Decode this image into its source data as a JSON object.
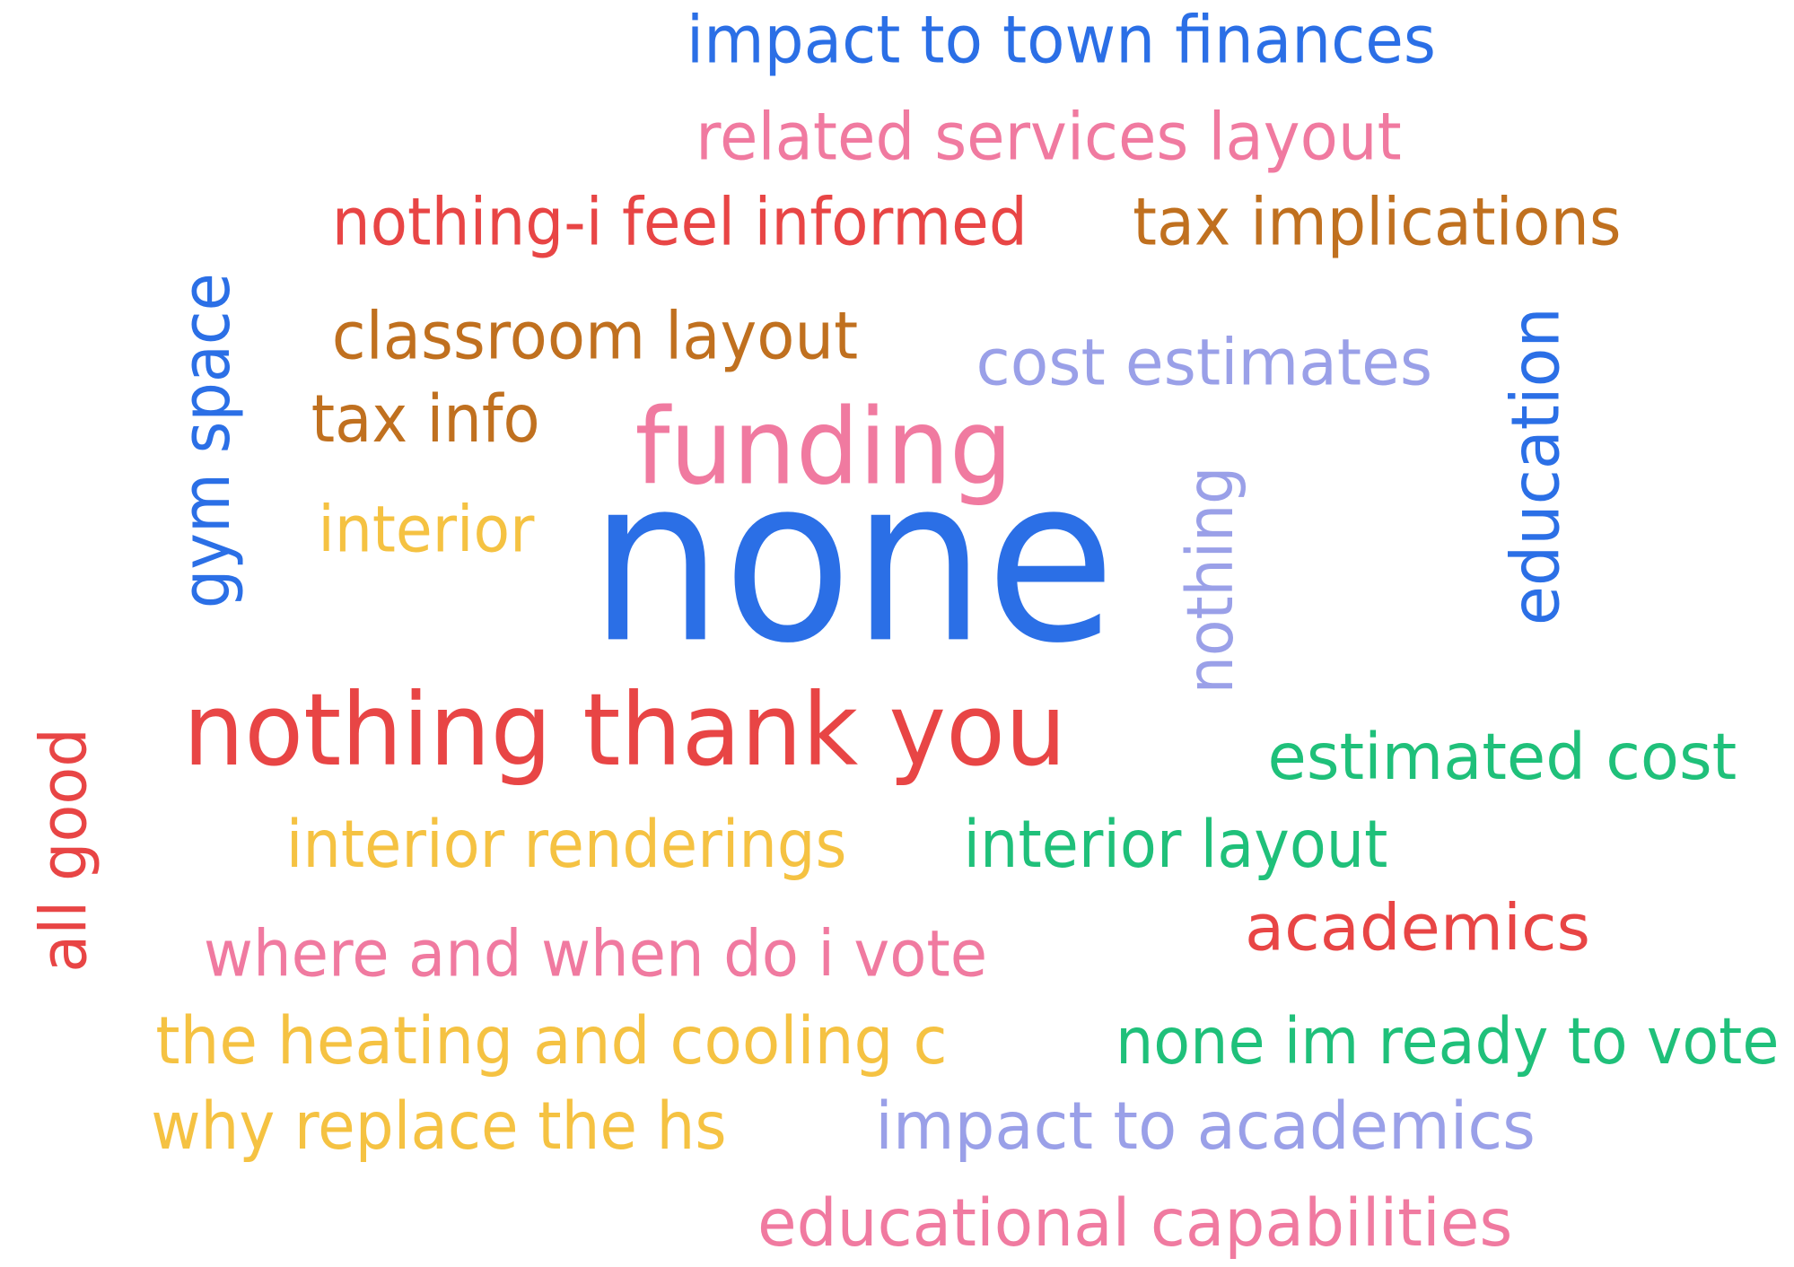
{
  "words": [
    {
      "text": "impact to town finances",
      "color": "#2b6fe6"
    },
    {
      "text": "related services layout",
      "color": "#f07aa0"
    },
    {
      "text": "nothing-i feel informed",
      "color": "#e84545"
    },
    {
      "text": "tax implications",
      "color": "#c0701f"
    },
    {
      "text": "gym space",
      "color": "#2b6fe6"
    },
    {
      "text": "classroom layout",
      "color": "#c0701f"
    },
    {
      "text": "cost estimates",
      "color": "#9aa0e8"
    },
    {
      "text": "education",
      "color": "#2b6fe6"
    },
    {
      "text": "tax info",
      "color": "#c0701f"
    },
    {
      "text": "funding",
      "color": "#f07aa0"
    },
    {
      "text": "nothing",
      "color": "#9aa0e8"
    },
    {
      "text": "interior",
      "color": "#f5c242"
    },
    {
      "text": "none",
      "color": "#2b6fe6"
    },
    {
      "text": "nothing thank you",
      "color": "#e84545"
    },
    {
      "text": "all good",
      "color": "#e84545"
    },
    {
      "text": "estimated cost",
      "color": "#1fc07a"
    },
    {
      "text": "interior renderings",
      "color": "#f5c242"
    },
    {
      "text": "interior layout",
      "color": "#1fc07a"
    },
    {
      "text": "academics",
      "color": "#e84545"
    },
    {
      "text": "where and when do i vote",
      "color": "#f07aa0"
    },
    {
      "text": "the heating and cooling c",
      "color": "#f5c242"
    },
    {
      "text": "none im ready to vote",
      "color": "#1fc07a"
    },
    {
      "text": "why replace the hs",
      "color": "#f5c242"
    },
    {
      "text": "impact to academics",
      "color": "#9aa0e8"
    },
    {
      "text": "educational capabilities",
      "color": "#f07aa0"
    }
  ]
}
